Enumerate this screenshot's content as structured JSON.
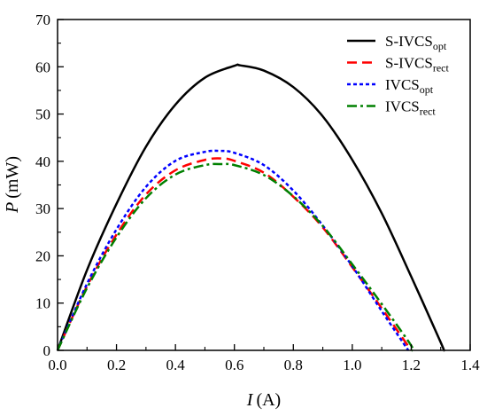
{
  "chart_data": {
    "type": "line",
    "xlabel": {
      "symbol": "I",
      "unit": "(A)"
    },
    "ylabel": {
      "symbol": "P",
      "unit": "(mW)"
    },
    "xlim": [
      0,
      1.4
    ],
    "ylim": [
      0,
      70
    ],
    "xticks": [
      "0.0",
      "0.2",
      "0.4",
      "0.6",
      "0.8",
      "1.0",
      "1.2",
      "1.4"
    ],
    "yticks": [
      "0",
      "10",
      "20",
      "30",
      "40",
      "50",
      "60",
      "70"
    ],
    "grid": false,
    "legend": {
      "placement": "top-right"
    },
    "series": [
      {
        "name": "S-IVCSopt",
        "label_main": "S-IVCS",
        "label_sub": "opt",
        "color": "#000000",
        "dash": "solid",
        "x": [
          0,
          0.1,
          0.2,
          0.3,
          0.4,
          0.5,
          0.6,
          0.62,
          0.7,
          0.8,
          0.9,
          1.0,
          1.1,
          1.2,
          1.3,
          1.31
        ],
        "y": [
          0,
          17.0,
          31.0,
          43.1,
          52.0,
          57.7,
          60.2,
          60.3,
          59.2,
          55.7,
          49.5,
          40.3,
          29.0,
          15.6,
          1.7,
          0
        ]
      },
      {
        "name": "S-IVCSrect",
        "label_main": "S-IVCS",
        "label_sub": "rect",
        "color": "#ff0000",
        "dash": "dashed",
        "x": [
          0,
          0.1,
          0.2,
          0.3,
          0.4,
          0.5,
          0.56,
          0.6,
          0.7,
          0.8,
          0.9,
          1.0,
          1.1,
          1.2
        ],
        "y": [
          0,
          13.6,
          24.5,
          33.0,
          38.1,
          40.3,
          40.6,
          40.1,
          37.6,
          32.5,
          26.0,
          17.6,
          8.9,
          0
        ]
      },
      {
        "name": "IVCSopt",
        "label_main": "IVCS",
        "label_sub": "opt",
        "color": "#0000ff",
        "dash": "dotted",
        "x": [
          0,
          0.1,
          0.2,
          0.3,
          0.4,
          0.5,
          0.55,
          0.6,
          0.7,
          0.8,
          0.9,
          1.0,
          1.1,
          1.19
        ],
        "y": [
          0,
          14.1,
          25.6,
          34.6,
          40.1,
          42.0,
          42.2,
          41.8,
          39.2,
          33.8,
          26.4,
          17.8,
          8.3,
          0
        ]
      },
      {
        "name": "IVCSrect",
        "label_main": "IVCS",
        "label_sub": "rect",
        "color": "#008000",
        "dash": "dashdot",
        "x": [
          0,
          0.1,
          0.2,
          0.3,
          0.4,
          0.5,
          0.56,
          0.6,
          0.7,
          0.8,
          0.9,
          1.0,
          1.1,
          1.2,
          1.2
        ],
        "y": [
          0,
          13.2,
          23.9,
          32.2,
          37.2,
          39.2,
          39.4,
          39.2,
          37.1,
          32.6,
          26.3,
          18.2,
          9.8,
          1.0,
          0
        ]
      }
    ]
  }
}
